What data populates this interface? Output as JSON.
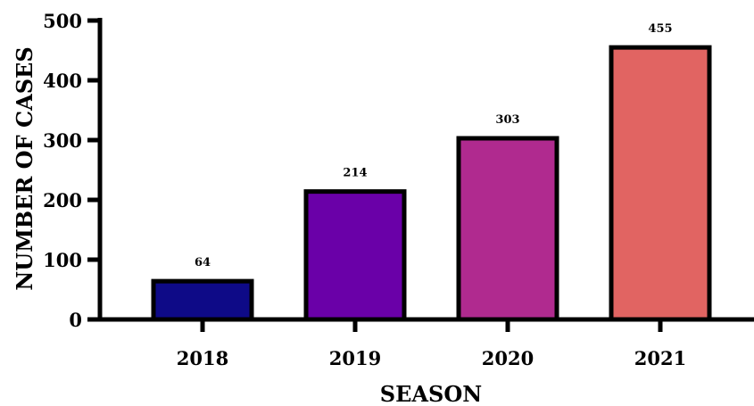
{
  "chart_data": {
    "type": "bar",
    "categories": [
      "2018",
      "2019",
      "2020",
      "2021"
    ],
    "values": [
      64,
      214,
      303,
      455
    ],
    "data_labels": [
      "64",
      "214",
      "303",
      "455"
    ],
    "colors": [
      "#0e0a87",
      "#6a00a8",
      "#b02a8f",
      "#e16462"
    ],
    "title": "",
    "xlabel": "SEASON",
    "ylabel": "NUMBER OF CASES",
    "ylim": [
      0,
      500
    ],
    "yticks": [
      0,
      100,
      200,
      300,
      400,
      500
    ],
    "ytick_labels": [
      "0",
      "100",
      "200",
      "300",
      "400",
      "500"
    ],
    "grid": false,
    "legend": "none"
  }
}
